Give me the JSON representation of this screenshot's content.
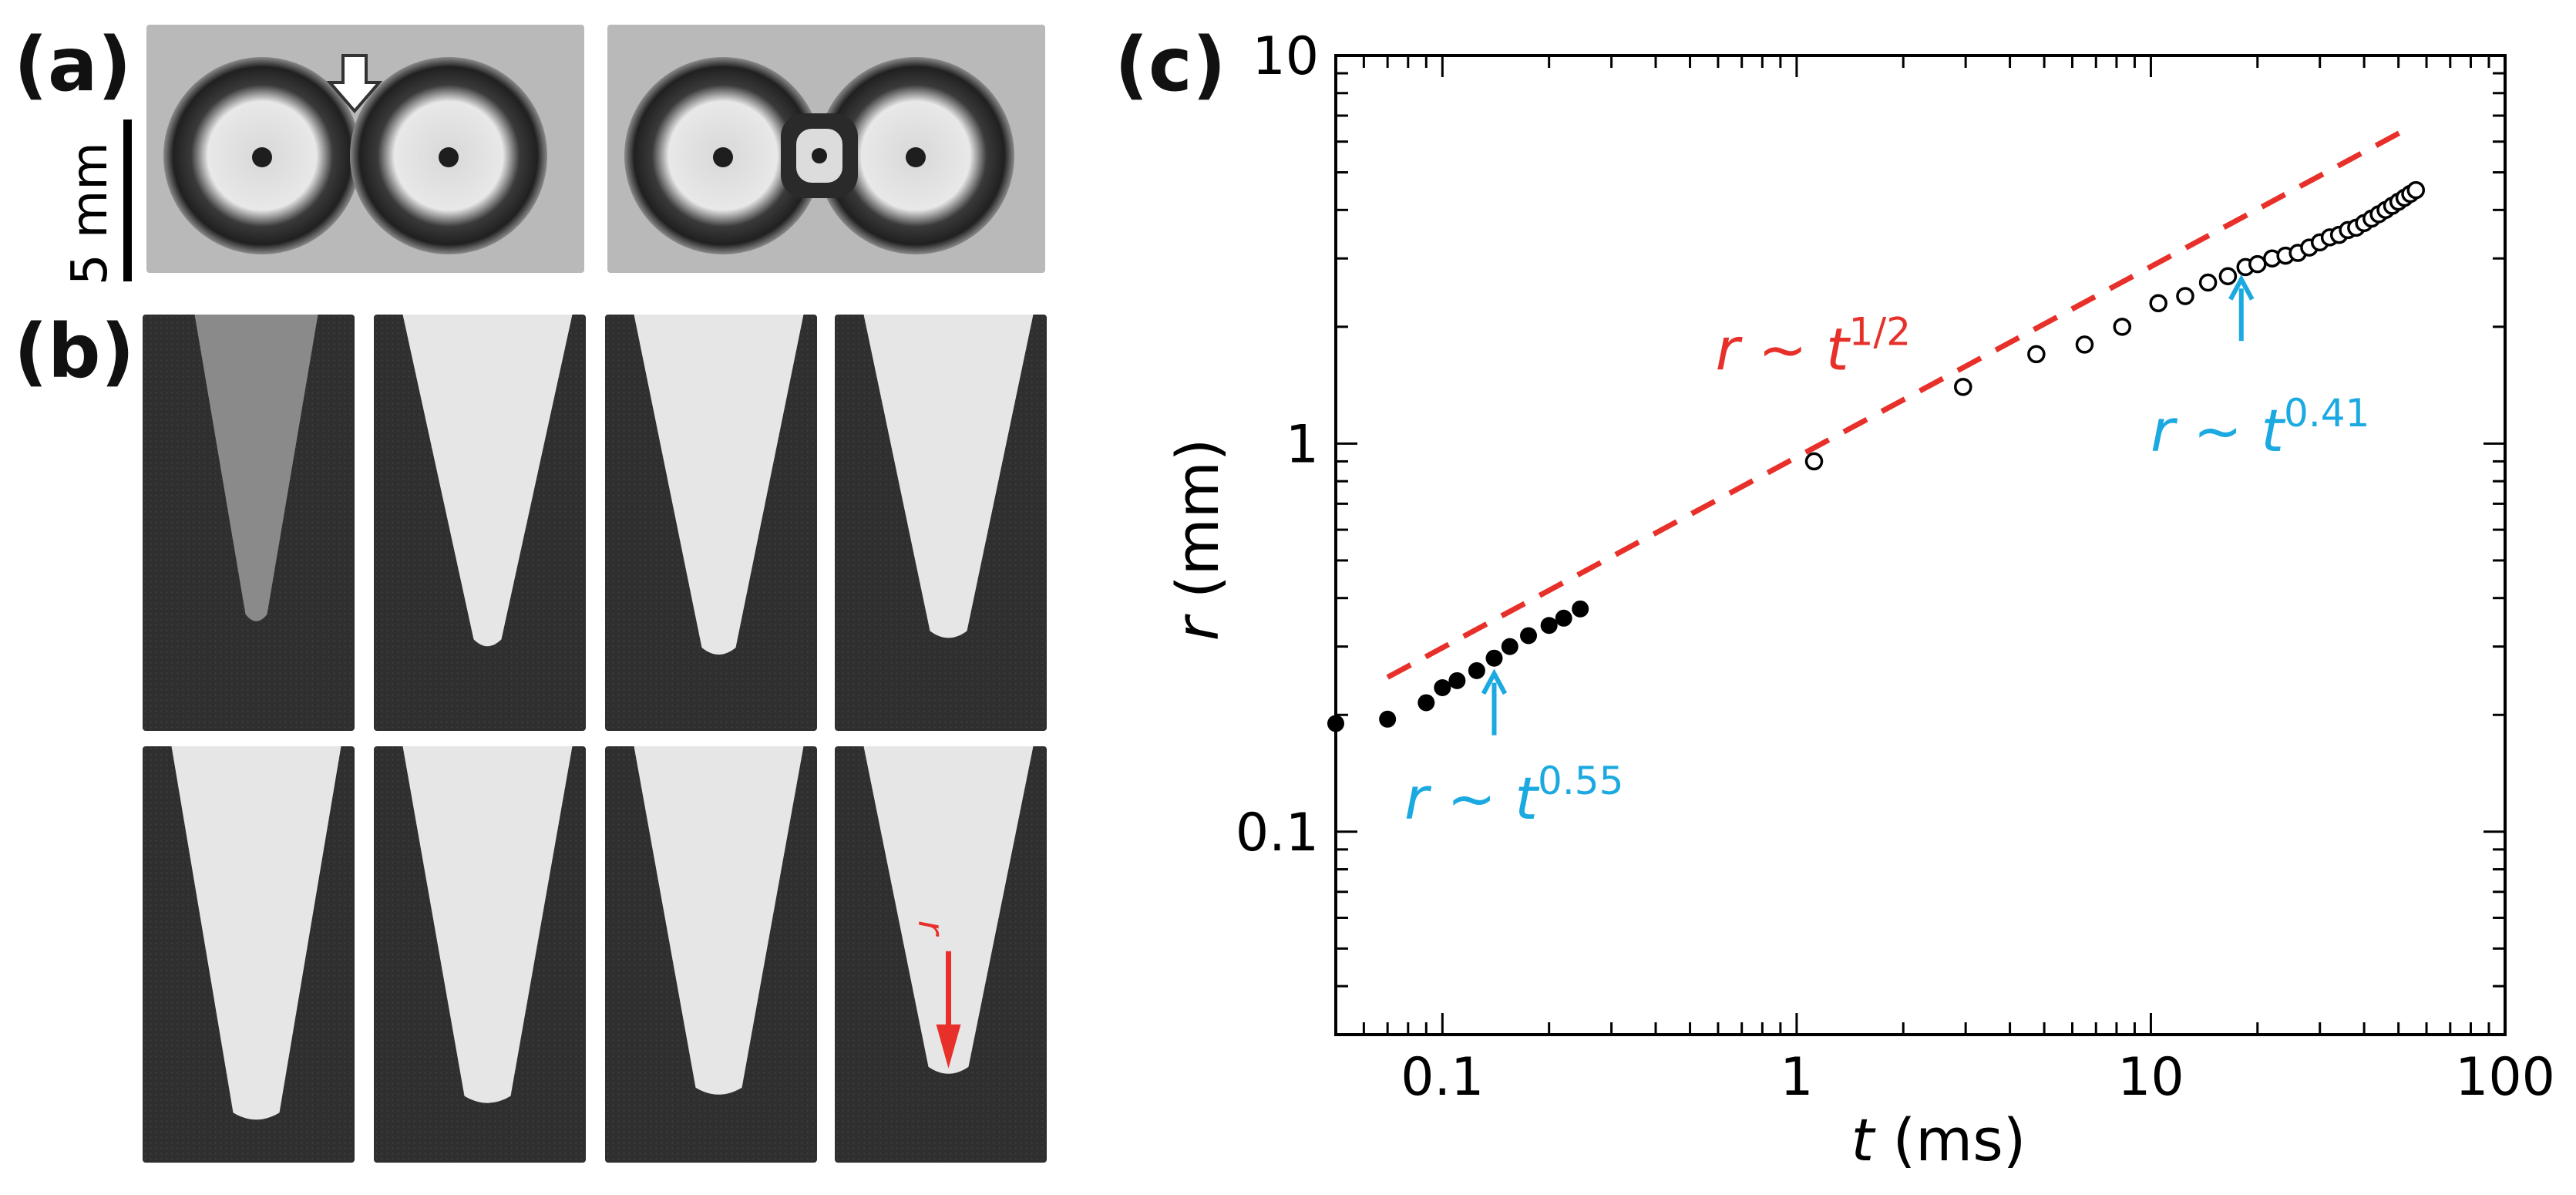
{
  "panels": {
    "a_label": "(a)",
    "b_label": "(b)",
    "c_label": "(c)",
    "scale_text": "5 mm",
    "r_marker": "r"
  },
  "colors": {
    "fit_line": "#e8302a",
    "annotation": "#1ba9e1",
    "axis": "#000000",
    "jet_dark": "#2f2f2f",
    "jet_light": "#e9e9e9"
  },
  "chart_data": {
    "type": "scatter",
    "xscale": "log",
    "yscale": "log",
    "xlim": [
      0.05,
      100
    ],
    "ylim": [
      0.03,
      10
    ],
    "xlabel": "t (ms)",
    "ylabel": "r (mm)",
    "xtick_labels": [
      "0.1",
      "1",
      "10",
      "100"
    ],
    "ytick_labels": [
      "0.1",
      "1",
      "10"
    ],
    "xticks": [
      0.1,
      1,
      10,
      100
    ],
    "yticks": [
      0.1,
      1,
      10
    ],
    "series": [
      {
        "marker": "filled-circle",
        "x": [
          0.05,
          0.07,
          0.09,
          0.1,
          0.11,
          0.125,
          0.14,
          0.155,
          0.175,
          0.2,
          0.22,
          0.245
        ],
        "y": [
          0.19,
          0.195,
          0.215,
          0.235,
          0.245,
          0.26,
          0.28,
          0.3,
          0.32,
          0.34,
          0.355,
          0.375
        ]
      },
      {
        "marker": "open-circle",
        "x": [
          1.12,
          2.95,
          4.75,
          6.5,
          8.3,
          10.5,
          12.5,
          14.5,
          16.5,
          18.5,
          20,
          22,
          24,
          26,
          28,
          30,
          32,
          34,
          36,
          38,
          40,
          42,
          44,
          46,
          48,
          50,
          52,
          54,
          56
        ],
        "y": [
          0.9,
          1.4,
          1.7,
          1.8,
          2.0,
          2.3,
          2.4,
          2.6,
          2.7,
          2.85,
          2.9,
          3.0,
          3.05,
          3.1,
          3.2,
          3.3,
          3.4,
          3.45,
          3.55,
          3.6,
          3.7,
          3.8,
          3.9,
          4.0,
          4.1,
          4.2,
          4.3,
          4.4,
          4.5
        ]
      }
    ],
    "fit_line": {
      "x": [
        0.07,
        55
      ],
      "y": [
        0.25,
        6.6
      ],
      "label_prefix": "r ~ t",
      "label_exp": "1/2"
    },
    "annotations": [
      {
        "prefix": "r ~ t",
        "exp": "0.55",
        "arrow_x": 0.14,
        "arrow_y": 0.27
      },
      {
        "prefix": "r ~ t",
        "exp": "0.41",
        "arrow_x": 18,
        "arrow_y": 2.8
      }
    ]
  }
}
